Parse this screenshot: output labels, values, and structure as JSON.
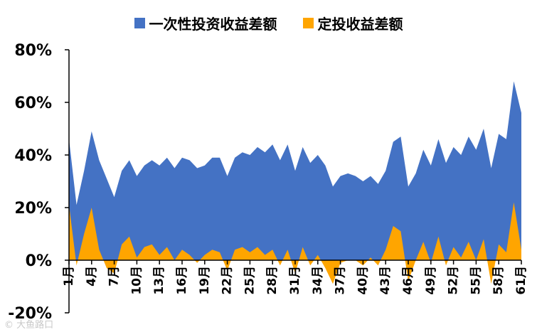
{
  "chart_data": {
    "type": "area",
    "title": "",
    "xlabel": "",
    "ylabel": "",
    "ylim": [
      -0.2,
      0.8
    ],
    "yticks": [
      {
        "value": -0.2,
        "label": "-20%"
      },
      {
        "value": 0.0,
        "label": "0%"
      },
      {
        "value": 0.2,
        "label": "20%"
      },
      {
        "value": 0.4,
        "label": "40%"
      },
      {
        "value": 0.6,
        "label": "60%"
      },
      {
        "value": 0.8,
        "label": "80%"
      }
    ],
    "x": [
      1,
      2,
      3,
      4,
      5,
      6,
      7,
      8,
      9,
      10,
      11,
      12,
      13,
      14,
      15,
      16,
      17,
      18,
      19,
      20,
      21,
      22,
      23,
      24,
      25,
      26,
      27,
      28,
      29,
      30,
      31,
      32,
      33,
      34,
      35,
      36,
      37,
      38,
      39,
      40,
      41,
      42,
      43,
      44,
      45,
      46,
      47,
      48,
      49,
      50,
      51,
      52,
      53,
      54,
      55,
      56,
      57,
      58,
      59,
      60,
      61
    ],
    "x_tick_labels": [
      "1月",
      "4月",
      "7月",
      "10月",
      "13月",
      "16月",
      "19月",
      "22月",
      "25月",
      "28月",
      "31月",
      "34月",
      "37月",
      "40月",
      "43月",
      "46月",
      "49月",
      "52月",
      "55月",
      "58月",
      "61月"
    ],
    "x_tick_positions": [
      1,
      4,
      7,
      10,
      13,
      16,
      19,
      22,
      25,
      28,
      31,
      34,
      37,
      40,
      43,
      46,
      49,
      52,
      55,
      58,
      61
    ],
    "legend_position": "top",
    "grid": false,
    "series": [
      {
        "name": "一次性投资收益差额",
        "color": "#4472C4",
        "values": [
          0.46,
          0.21,
          0.34,
          0.49,
          0.38,
          0.31,
          0.24,
          0.34,
          0.38,
          0.32,
          0.36,
          0.38,
          0.36,
          0.39,
          0.35,
          0.39,
          0.38,
          0.35,
          0.36,
          0.39,
          0.39,
          0.32,
          0.39,
          0.41,
          0.4,
          0.43,
          0.41,
          0.44,
          0.38,
          0.44,
          0.34,
          0.43,
          0.37,
          0.4,
          0.36,
          0.28,
          0.32,
          0.33,
          0.32,
          0.3,
          0.32,
          0.29,
          0.34,
          0.45,
          0.47,
          0.28,
          0.33,
          0.42,
          0.36,
          0.46,
          0.37,
          0.43,
          0.4,
          0.47,
          0.42,
          0.5,
          0.35,
          0.48,
          0.46,
          0.68,
          0.56
        ]
      },
      {
        "name": "定投收益差额",
        "color": "#FFA500",
        "values": [
          0.21,
          -0.02,
          0.1,
          0.2,
          0.04,
          -0.03,
          -0.05,
          0.06,
          0.09,
          0.01,
          0.05,
          0.06,
          0.02,
          0.05,
          0.0,
          0.04,
          0.02,
          -0.01,
          0.02,
          0.04,
          0.03,
          -0.04,
          0.04,
          0.05,
          0.03,
          0.05,
          0.02,
          0.04,
          -0.02,
          0.04,
          -0.05,
          0.05,
          -0.02,
          0.02,
          -0.03,
          -0.09,
          -0.01,
          0.0,
          0.0,
          -0.02,
          0.01,
          -0.02,
          0.04,
          0.13,
          0.11,
          -0.08,
          0.0,
          0.07,
          -0.01,
          0.09,
          -0.02,
          0.05,
          0.01,
          0.07,
          0.0,
          0.08,
          -0.09,
          0.06,
          0.03,
          0.22,
          0.04
        ]
      }
    ]
  },
  "watermark": "©︎ 大鱼路口"
}
